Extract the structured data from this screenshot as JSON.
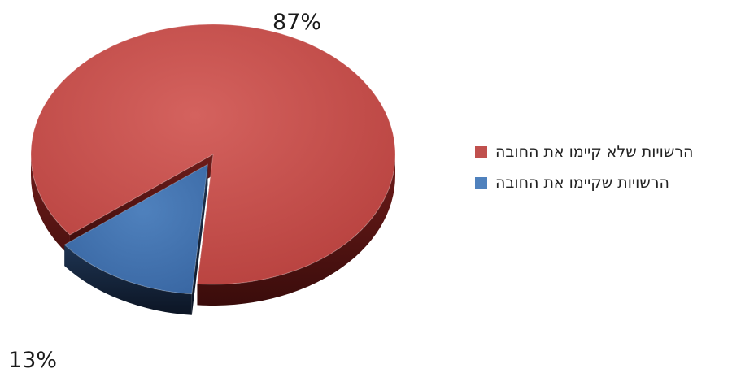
{
  "chart_data": {
    "type": "pie",
    "categories": [
      "הרשויות שלא קיימו את החובה",
      "הרשויות שקיימו את החובה"
    ],
    "values": [
      87,
      13
    ],
    "data_labels": [
      "87%",
      "13%"
    ],
    "colors": [
      "#c0504d",
      "#4f81bd"
    ],
    "exploded_slice": "הרשויות שקיימו את החובה",
    "style": "3d",
    "legend_position": "right"
  },
  "legend": {
    "items": [
      {
        "label": "הרשויות שלא קיימו את החובה",
        "color": "#c0504d"
      },
      {
        "label": "הרשויות שקיימו את החובה",
        "color": "#4f81bd"
      }
    ]
  }
}
